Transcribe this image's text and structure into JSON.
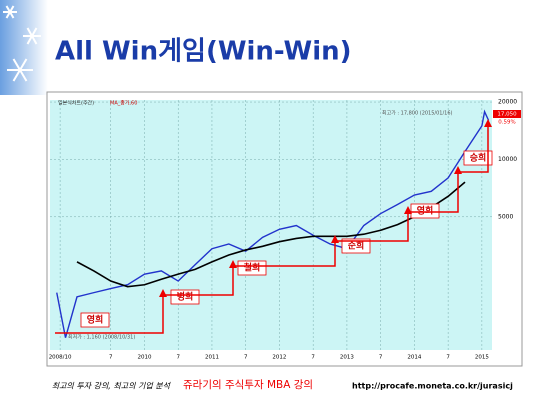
{
  "title": "All Win게임(Win-Win)",
  "chart_data": {
    "type": "line",
    "log_scale": true,
    "grid": true,
    "x": [
      2008.7,
      2008.83,
      2009.0,
      2009.25,
      2009.5,
      2009.75,
      2010.0,
      2010.25,
      2010.5,
      2010.75,
      2011.0,
      2011.25,
      2011.5,
      2011.75,
      2012.0,
      2012.25,
      2012.5,
      2012.75,
      2013.0,
      2013.25,
      2013.5,
      2013.75,
      2014.0,
      2014.25,
      2014.5,
      2014.75,
      2015.0,
      2015.04,
      2015.1
    ],
    "series": [
      {
        "name": "일본식차트(주간)",
        "color": "#2233cc",
        "values": [
          2000,
          1160,
          1900,
          2000,
          2100,
          2200,
          2500,
          2600,
          2300,
          2800,
          3400,
          3600,
          3300,
          3900,
          4300,
          4500,
          4000,
          3600,
          3400,
          4500,
          5200,
          5800,
          6500,
          6800,
          8000,
          11000,
          15000,
          17800,
          16000
        ]
      },
      {
        "name": "MA_종가,60",
        "color": "#000000",
        "values": [
          null,
          null,
          2900,
          2600,
          2300,
          2150,
          2200,
          2350,
          2500,
          2650,
          2900,
          3150,
          3350,
          3500,
          3700,
          3850,
          3950,
          3950,
          3950,
          4050,
          4250,
          4550,
          5000,
          5600,
          6400,
          7600,
          null,
          null,
          null
        ]
      }
    ],
    "xlim": [
      2008.6,
      2015.15
    ],
    "xticks": [
      {
        "value": 2008.75,
        "label": "2008/10"
      },
      {
        "value": 2009.5,
        "label": "7"
      },
      2010,
      {
        "value": 2010.5,
        "label": "7"
      },
      2011,
      {
        "value": 2011.5,
        "label": "7"
      },
      2012,
      {
        "value": 2012.5,
        "label": "7"
      },
      2013,
      {
        "value": 2013.5,
        "label": "7"
      },
      2014,
      {
        "value": 2014.5,
        "label": "7"
      },
      2015
    ],
    "ylim": [
      1000,
      20500
    ],
    "yticks": [
      5000,
      10000,
      20000
    ],
    "annotations": [
      "영희",
      "병희",
      "철희",
      "순희",
      "영희",
      "승희"
    ],
    "high_label": "최고가 : 17,800 (2015/01/16)",
    "low_label": "최저가 : 1,160 (2008/10/31)",
    "last_price": "17,050",
    "last_change": "0.59%"
  },
  "footer": {
    "slogan": "최고의 투자 강의, 최고의 기업 분석",
    "course": "쥬라기의 주식투자 MBA 강의",
    "url": "http://procafe.moneta.co.kr/jurasicj"
  }
}
